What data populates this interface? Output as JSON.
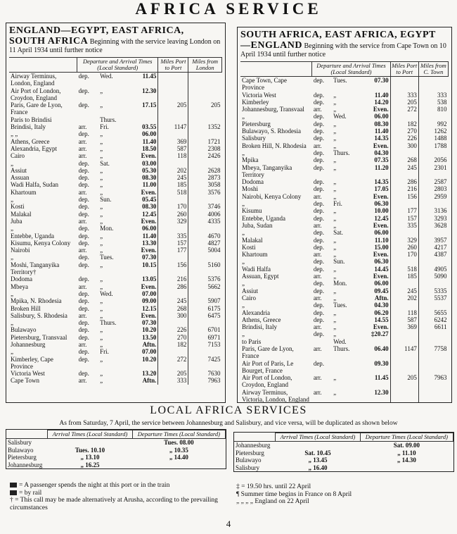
{
  "title": "AFRICA SERVICE",
  "left": {
    "heading": "ENGLAND—EGYPT, EAST AFRICA, SOUTH AFRICA",
    "intro": "Beginning with the service leaving London on 11 April 1934 until further notice",
    "columns": [
      "Departure and Arrival Times (Local Standard)",
      "Miles Port to Port",
      "Miles from London"
    ],
    "rows": [
      [
        "Airway Terminus, London, England",
        "dep.",
        "Wed.",
        "11.45",
        null,
        null
      ],
      [
        "Air Port of London, Croydon, England",
        "dep.",
        "„",
        "12.30",
        null,
        null
      ],
      [
        "Paris, Gare de Lyon, France",
        "dep.",
        "„",
        "17.15",
        "205",
        "205"
      ],
      [
        "Paris to Brindisi",
        null,
        "Thurs.",
        null,
        null,
        null
      ],
      [
        "Brindisi, Italy",
        "arr.",
        "Fri.",
        "03.55",
        "1147",
        "1352"
      ],
      [
        "„ „",
        "dep.",
        "„",
        "06.00",
        null,
        null
      ],
      [
        "Athens, Greece",
        "arr.",
        "„",
        "11.40",
        "369",
        "1721"
      ],
      [
        "Alexandria, Egypt",
        "arr.",
        "„",
        "18.50",
        "587",
        "2308"
      ],
      [
        "Cairo",
        "arr.",
        "„",
        "Even.",
        "118",
        "2426"
      ],
      [
        "„",
        "dep.",
        "Sat.",
        "03.00",
        null,
        null
      ],
      [
        "Assiut",
        "dep.",
        "„",
        "05.30",
        "202",
        "2628"
      ],
      [
        "Assuan",
        "dep.",
        "„",
        "08.30",
        "245",
        "2873"
      ],
      [
        "Wadi Halfa, Sudan",
        "dep.",
        "„",
        "11.00",
        "185",
        "3058"
      ],
      [
        "Khartoum",
        "arr.",
        "„",
        "Even.",
        "518",
        "3576"
      ],
      [
        "„",
        "dep.",
        "Sun.",
        "05.45",
        null,
        null
      ],
      [
        "Kosti",
        "dep.",
        "„",
        "08.30",
        "170",
        "3746"
      ],
      [
        "Malakal",
        "dep.",
        "„",
        "12.45",
        "260",
        "4006"
      ],
      [
        "Juba",
        "arr.",
        "„",
        "Even.",
        "329",
        "4335"
      ],
      [
        "„",
        "dep.",
        "Mon.",
        "06.00",
        null,
        null
      ],
      [
        "Entebbe, Uganda",
        "dep.",
        "„",
        "11.40",
        "335",
        "4670"
      ],
      [
        "Kisumu, Kenya Colony",
        "dep.",
        "„",
        "13.30",
        "157",
        "4827"
      ],
      [
        "Nairobi",
        "arr.",
        "„",
        "Even.",
        "177",
        "5004"
      ],
      [
        "„",
        "dep.",
        "Tues.",
        "07.30",
        null,
        null
      ],
      [
        "Moshi, Tanganyika Territory†",
        "dep.",
        "„",
        "10.15",
        "156",
        "5160"
      ],
      [
        "Dodoma",
        "dep.",
        "„",
        "13.05",
        "216",
        "5376"
      ],
      [
        "Mbeya",
        "arr.",
        "„",
        "Even.",
        "286",
        "5662"
      ],
      [
        "„",
        "dep.",
        "Wed.",
        "07.00",
        null,
        null
      ],
      [
        "Mpika, N. Rhodesia",
        "dep.",
        "„",
        "09.00",
        "245",
        "5907"
      ],
      [
        "Broken Hill",
        "dep.",
        "„",
        "12.15",
        "268",
        "6175"
      ],
      [
        "Salisbury, S. Rhodesia",
        "arr.",
        "„",
        "Even.",
        "300",
        "6475"
      ],
      [
        "„",
        "dep.",
        "Thurs.",
        "07.30",
        null,
        null
      ],
      [
        "Bulawayo",
        "dep.",
        "„",
        "10.20",
        "226",
        "6701"
      ],
      [
        "Pietersburg, Transvaal",
        "dep.",
        "„",
        "13.50",
        "270",
        "6971"
      ],
      [
        "Johannesburg",
        "arr.",
        "„",
        "Aftn.",
        "182",
        "7153"
      ],
      [
        "„",
        "dep.",
        "Fri.",
        "07.00",
        null,
        null
      ],
      [
        "Kimberley, Cape Province",
        "dep.",
        "„",
        "10.20",
        "272",
        "7425"
      ],
      [
        "Victoria West",
        "dep.",
        "„",
        "13.20",
        "205",
        "7630"
      ],
      [
        "Cape Town",
        "arr.",
        "„",
        "Aftn.",
        "333",
        "7963"
      ]
    ]
  },
  "right": {
    "heading": "SOUTH AFRICA, EAST AFRICA, EGYPT —ENGLAND",
    "intro": "Beginning with the service from Cape Town on 10 April 1934 until further notice",
    "columns": [
      "Departure and Arrival Times (Local Standard)",
      "Miles Port to Port",
      "Miles from C. Town"
    ],
    "rows": [
      [
        "Cape Town, Cape Province",
        "dep.",
        "Tues.",
        "07.30",
        null,
        null
      ],
      [
        "Victoria West",
        "dep.",
        "„",
        "11.40",
        "333",
        "333"
      ],
      [
        "Kimberley",
        "dep.",
        "„",
        "14.20",
        "205",
        "538"
      ],
      [
        "Johannesburg, Transvaal",
        "arr.",
        "„",
        "Even.",
        "272",
        "810"
      ],
      [
        "„",
        "dep.",
        "Wed.",
        "06.00",
        null,
        null
      ],
      [
        "Pietersburg",
        "dep.",
        "„",
        "08.30",
        "182",
        "992"
      ],
      [
        "Bulawayo, S. Rhodesia",
        "dep.",
        "„",
        "11.40",
        "270",
        "1262"
      ],
      [
        "Salisbury",
        "dep.",
        "„",
        "14.35",
        "226",
        "1488"
      ],
      [
        "Broken Hill, N. Rhodesia",
        "arr.",
        "„",
        "Even.",
        "300",
        "1788"
      ],
      [
        "„",
        "dep.",
        "Thurs.",
        "04.30",
        null,
        null
      ],
      [
        "Mpika",
        "dep.",
        "„",
        "07.35",
        "268",
        "2056"
      ],
      [
        "Mbeya, Tanganyika Territory",
        "dep.",
        "„",
        "11.20",
        "245",
        "2301"
      ],
      [
        "Dodoma",
        "dep.",
        "„",
        "14.35",
        "286",
        "2587"
      ],
      [
        "Moshi",
        "dep.",
        "„",
        "17.05",
        "216",
        "2803"
      ],
      [
        "Nairobi, Kenya Colony",
        "arr.",
        "„",
        "Even.",
        "156",
        "2959"
      ],
      [
        "„",
        "dep.",
        "Fri.",
        "06.30",
        null,
        null
      ],
      [
        "Kisumu",
        "dep.",
        "„",
        "10.00",
        "177",
        "3136"
      ],
      [
        "Entebbe, Uganda",
        "dep.",
        "„",
        "12.45",
        "157",
        "3293"
      ],
      [
        "Juba, Sudan",
        "arr.",
        "„",
        "Even.",
        "335",
        "3628"
      ],
      [
        "„",
        "dep.",
        "Sat.",
        "06.00",
        null,
        null
      ],
      [
        "Malakal",
        "dep.",
        "„",
        "11.10",
        "329",
        "3957"
      ],
      [
        "Kosti",
        "dep.",
        "„",
        "15.00",
        "260",
        "4217"
      ],
      [
        "Khartoum",
        "arr.",
        "„",
        "Even.",
        "170",
        "4387"
      ],
      [
        "„",
        "dep.",
        "Sun.",
        "06.30",
        null,
        null
      ],
      [
        "Wadi Halfa",
        "dep.",
        "„",
        "14.45",
        "518",
        "4905"
      ],
      [
        "Assuan, Egypt",
        "arr.",
        "„",
        "Even.",
        "185",
        "5090"
      ],
      [
        "„",
        "dep.",
        "Mon.",
        "06.00",
        null,
        null
      ],
      [
        "Assiut",
        "dep.",
        "„",
        "09.45",
        "245",
        "5335"
      ],
      [
        "Cairo",
        "arr.",
        "„",
        "Aftn.",
        "202",
        "5537"
      ],
      [
        "„",
        "dep.",
        "Tues.",
        "04.30",
        null,
        null
      ],
      [
        "Alexandria",
        "dep.",
        "„",
        "06.20",
        "118",
        "5655"
      ],
      [
        "Athens, Greece",
        "dep.",
        "„",
        "14.55",
        "587",
        "6242"
      ],
      [
        "Brindisi, Italy",
        "arr.",
        "„",
        "Even.",
        "369",
        "6611"
      ],
      [
        "„",
        "dep.",
        "„",
        "‡20.27",
        null,
        null
      ],
      [
        "to Paris",
        null,
        "Wed.",
        null,
        null,
        null
      ],
      [
        "Paris, Gare de Lyon, France",
        "arr.",
        "Thurs.",
        "06.40",
        "1147",
        "7758"
      ],
      [
        "Air Port of Paris, Le Bourget, France",
        "dep.",
        null,
        "09.30",
        null,
        null
      ],
      [
        "Air Port of London, Croydon, England",
        "arr.",
        "„",
        "11.45",
        "205",
        "7963"
      ],
      [
        "Airway Terminus, Victoria, London, England",
        "arr.",
        "„",
        "12.30",
        null,
        null
      ]
    ]
  },
  "local": {
    "title": "LOCAL AFRICA SERVICES",
    "note": "As from Saturday, 7 April, the service between Johannesburg and Salisbury, and vice versa, will be duplicated as shown below",
    "tables": [
      {
        "columns": [
          "Arrival Times (Local Standard)",
          "Departure Times (Local Standard)"
        ],
        "rows": [
          [
            "Salisbury",
            null,
            "Tues. 08.00"
          ],
          [
            "Bulawayo",
            "Tues. 10.10",
            "„ 10.35"
          ],
          [
            "Pietersburg",
            "„ 13.10",
            "„ 14.40"
          ],
          [
            "Johannesburg",
            "„ 16.25",
            null
          ]
        ]
      },
      {
        "columns": [
          "Arrival Times (Local Standard)",
          "Departure Times (Local Standard)"
        ],
        "rows": [
          [
            "Johannesburg",
            null,
            "Sat. 09.00"
          ],
          [
            "Pietersburg",
            "Sat. 10.45",
            "„ 11.10"
          ],
          [
            "Bulawayo",
            "„ 13.45",
            "„ 14.30"
          ],
          [
            "Salisbury",
            "„ 16.40",
            null
          ]
        ]
      }
    ]
  },
  "footnotes": {
    "left": [
      "= A passenger spends the night at this port or in the train",
      "= by rail",
      "† = This call may be made alternatively at Arusha, according to the prevailing circumstances"
    ],
    "right": [
      "‡ = 19.50 hrs. until 22 April",
      "¶ Summer time begins in France on 8 April",
      "„ „ „ „ England on 22 April"
    ]
  },
  "page_number": "4"
}
